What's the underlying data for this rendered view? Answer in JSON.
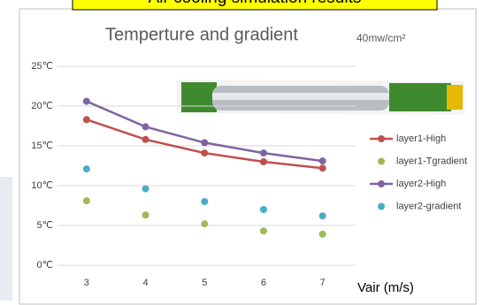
{
  "banner": "Air cooling simulation results",
  "chart_data": {
    "type": "line",
    "title": "Temperture and gradient",
    "annotation": "40mw/cm²",
    "x_label": "Vair (m/s)",
    "x": [
      3,
      4,
      5,
      6,
      7
    ],
    "xlim": [
      2.5,
      7.5
    ],
    "xticks": [
      3,
      4,
      5,
      6,
      7
    ],
    "ylim": [
      0,
      25
    ],
    "yticks": [
      {
        "value": 0,
        "label": "0℃"
      },
      {
        "value": 5,
        "label": "5℃"
      },
      {
        "value": 10,
        "label": "10℃"
      },
      {
        "value": 15,
        "label": "15℃"
      },
      {
        "value": 20,
        "label": "20℃"
      },
      {
        "value": 25,
        "label": "25℃"
      }
    ],
    "grid": true,
    "legend": "right",
    "series": [
      {
        "name": "layer1-High",
        "type": "line",
        "color": "#c0504d",
        "values": [
          18.3,
          15.8,
          14.1,
          13.0,
          12.2
        ]
      },
      {
        "name": "layer1-Tgradient",
        "type": "scatter",
        "color": "#9bbb59",
        "values": [
          8.1,
          6.3,
          5.2,
          4.3,
          3.9
        ]
      },
      {
        "name": "layer2-High",
        "type": "line",
        "color": "#8064a2",
        "values": [
          20.6,
          17.4,
          15.4,
          14.1,
          13.1
        ]
      },
      {
        "name": "layer2-gradient",
        "type": "scatter",
        "color": "#4bacc6",
        "values": [
          12.1,
          9.6,
          8.0,
          7.0,
          6.2
        ]
      }
    ]
  }
}
